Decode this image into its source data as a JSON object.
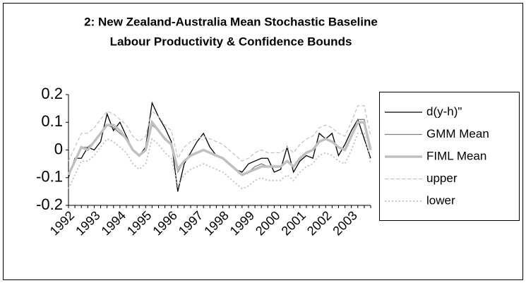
{
  "chart_data": {
    "type": "line",
    "title": [
      "2: New Zealand-Australia Mean Stochastic Baseline",
      "Labour Productivity & Confidence Bounds"
    ],
    "categories": [
      "1992",
      null,
      null,
      null,
      "1993",
      null,
      null,
      null,
      "1994",
      null,
      null,
      null,
      "1995",
      null,
      null,
      null,
      "1996",
      null,
      null,
      null,
      "1997",
      null,
      null,
      null,
      "1998",
      null,
      null,
      null,
      "1999",
      null,
      null,
      null,
      "2000",
      null,
      null,
      null,
      "2001",
      null,
      null,
      null,
      "2002",
      null,
      null,
      null,
      "2003",
      null,
      null,
      null
    ],
    "ylim": [
      -0.2,
      0.2
    ],
    "yticks": [
      0.2,
      0.1,
      0,
      -0.1,
      -0.2
    ],
    "grid": false,
    "legend": "right",
    "series": [
      {
        "name": "d(y-h)\"",
        "color": "#000000",
        "width": 1.3,
        "dash": "none",
        "values": [
          -0.1,
          -0.03,
          -0.03,
          0.01,
          0.0,
          0.03,
          0.13,
          0.07,
          0.1,
          0.05,
          0.0,
          -0.02,
          0.01,
          0.17,
          0.12,
          0.08,
          0.03,
          -0.15,
          -0.05,
          -0.01,
          0.03,
          0.06,
          0.01,
          -0.02,
          -0.03,
          -0.05,
          -0.07,
          -0.08,
          -0.05,
          -0.04,
          -0.03,
          -0.03,
          -0.08,
          -0.07,
          0.01,
          -0.08,
          -0.04,
          -0.02,
          -0.03,
          0.06,
          0.04,
          0.06,
          -0.02,
          0.02,
          0.07,
          0.11,
          0.04,
          -0.03
        ]
      },
      {
        "name": "GMM Mean",
        "color": "#808080",
        "width": 1.3,
        "dash": "none",
        "values": [
          -0.09,
          -0.04,
          0.01,
          0.01,
          0.03,
          0.06,
          0.09,
          0.08,
          0.06,
          0.04,
          0.0,
          -0.02,
          0.0,
          0.09,
          0.07,
          0.04,
          0.02,
          -0.08,
          -0.04,
          -0.02,
          -0.01,
          0.0,
          -0.01,
          -0.02,
          -0.03,
          -0.05,
          -0.07,
          -0.09,
          -0.08,
          -0.06,
          -0.05,
          -0.06,
          -0.06,
          -0.06,
          -0.04,
          -0.06,
          -0.03,
          -0.01,
          0.0,
          0.03,
          0.04,
          0.03,
          0.01,
          0.0,
          0.05,
          0.11,
          0.11,
          0.0
        ]
      },
      {
        "name": "FIML Mean",
        "color": "#c0c0c0",
        "width": 3.5,
        "dash": "none",
        "values": [
          -0.09,
          -0.04,
          0.01,
          0.0,
          0.03,
          0.06,
          0.09,
          0.09,
          0.07,
          0.04,
          0.0,
          -0.02,
          0.0,
          0.1,
          0.07,
          0.04,
          0.02,
          -0.07,
          -0.04,
          -0.02,
          -0.01,
          0.0,
          -0.01,
          -0.02,
          -0.03,
          -0.05,
          -0.07,
          -0.09,
          -0.08,
          -0.07,
          -0.06,
          -0.06,
          -0.06,
          -0.06,
          -0.04,
          -0.06,
          -0.03,
          -0.01,
          0.0,
          0.03,
          0.04,
          0.03,
          0.01,
          0.0,
          0.05,
          0.1,
          0.1,
          0.0
        ]
      },
      {
        "name": "upper",
        "color": "#c0c0c0",
        "width": 1.2,
        "dash": "5,3",
        "values": [
          -0.04,
          0.01,
          0.06,
          0.06,
          0.08,
          0.11,
          0.14,
          0.13,
          0.11,
          0.09,
          0.05,
          0.03,
          0.05,
          0.14,
          0.12,
          0.09,
          0.07,
          -0.03,
          0.01,
          0.03,
          0.04,
          0.05,
          0.04,
          0.03,
          0.02,
          0.0,
          -0.02,
          -0.04,
          -0.03,
          -0.01,
          0.0,
          -0.01,
          -0.01,
          -0.01,
          0.01,
          -0.01,
          0.02,
          0.04,
          0.05,
          0.08,
          0.09,
          0.08,
          0.06,
          0.05,
          0.1,
          0.16,
          0.16,
          0.05
        ]
      },
      {
        "name": "lower",
        "color": "#c0c0c0",
        "width": 1.8,
        "dash": "2,3",
        "values": [
          -0.14,
          -0.09,
          -0.04,
          -0.04,
          -0.02,
          0.01,
          0.04,
          0.03,
          0.01,
          -0.01,
          -0.05,
          -0.07,
          -0.05,
          0.04,
          0.02,
          -0.01,
          -0.03,
          -0.13,
          -0.09,
          -0.07,
          -0.06,
          -0.05,
          -0.06,
          -0.07,
          -0.08,
          -0.1,
          -0.12,
          -0.14,
          -0.13,
          -0.11,
          -0.1,
          -0.11,
          -0.11,
          -0.11,
          -0.09,
          -0.11,
          -0.08,
          -0.06,
          -0.05,
          -0.02,
          -0.01,
          -0.02,
          -0.04,
          -0.05,
          0.0,
          0.06,
          0.06,
          -0.05
        ]
      }
    ]
  }
}
